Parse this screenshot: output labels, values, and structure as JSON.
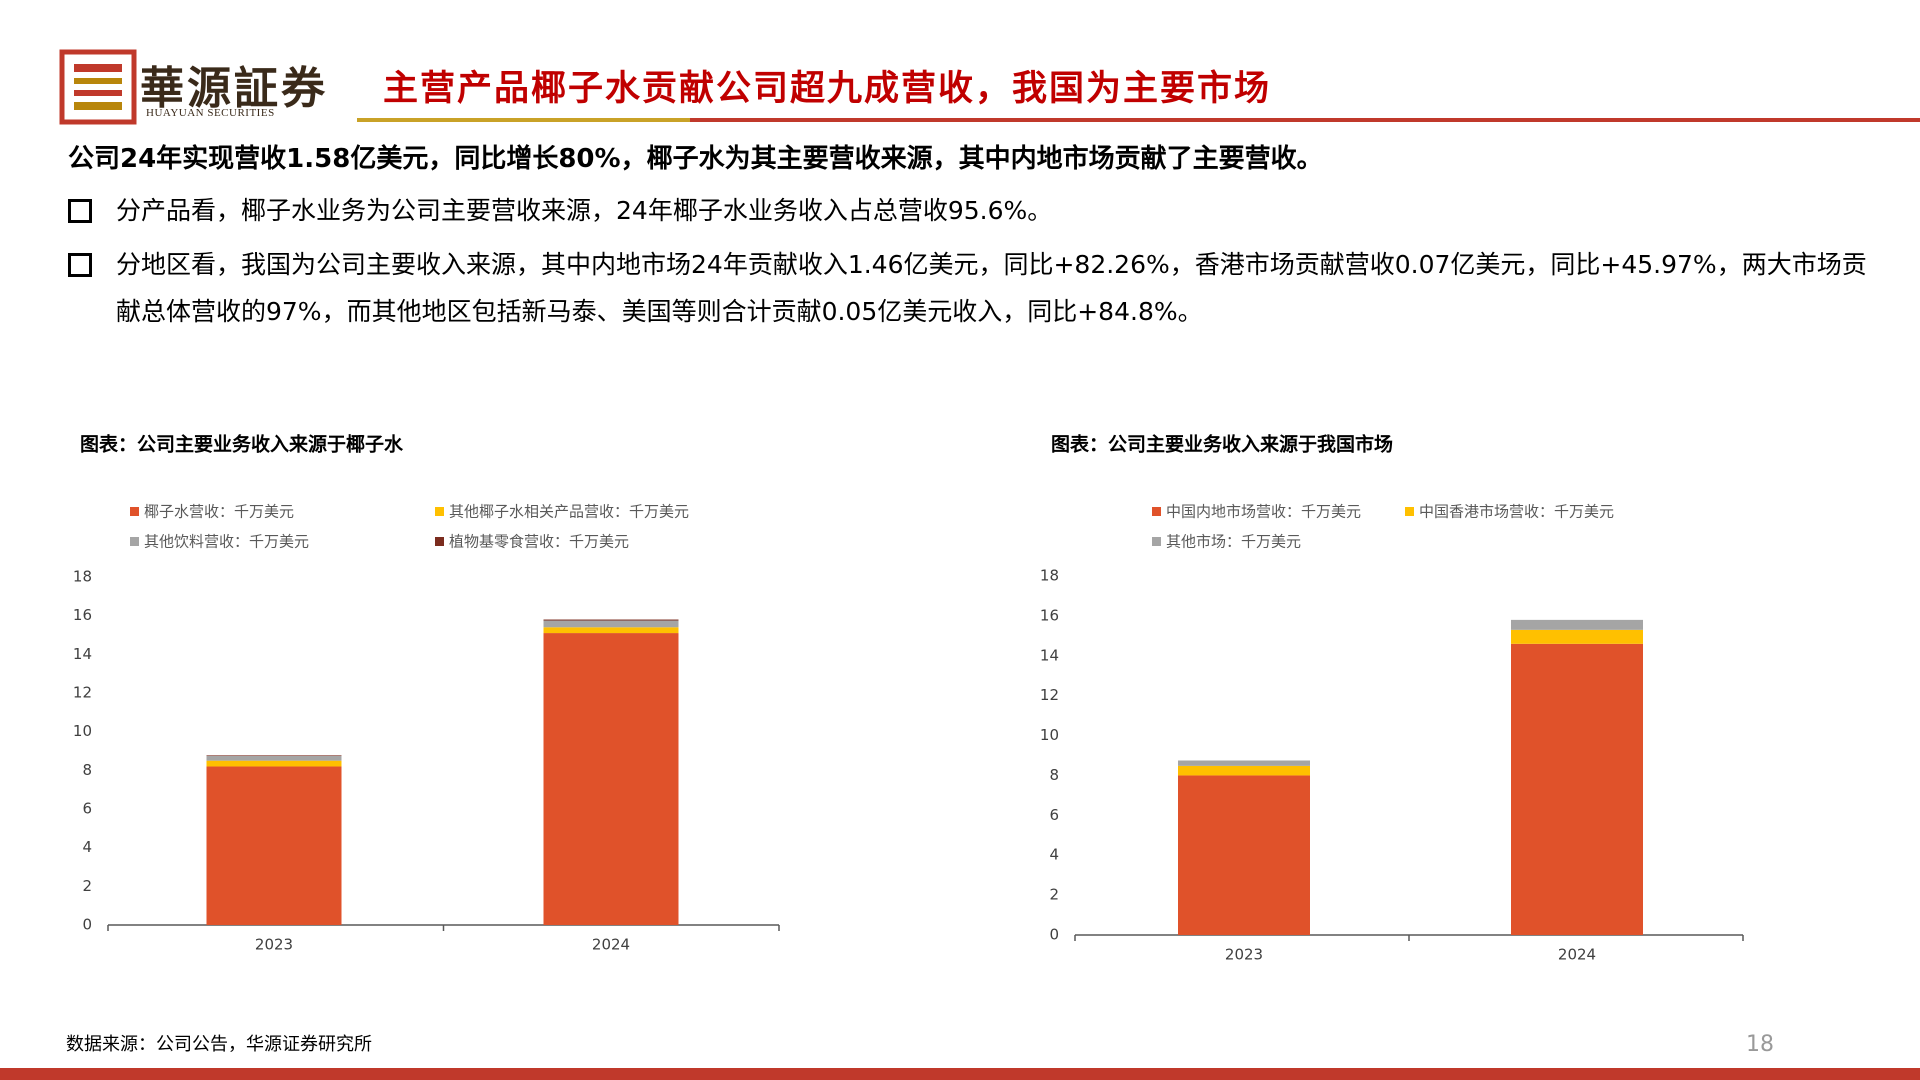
{
  "header": {
    "brand": "華源証券",
    "brand_en": "HUAYUAN SECURITIES",
    "title": "主营产品椰子水贡献公司超九成营收，我国为主要市场"
  },
  "summary": "公司24年实现营收1.58亿美元，同比增长80%，椰子水为其主要营收来源，其中内地市场贡献了主要营收。",
  "bullets": [
    "分产品看，椰子水业务为公司主要营收来源，24年椰子水业务收入占总营收95.6%。",
    "分地区看，我国为公司主要收入来源，其中内地市场24年贡献收入1.46亿美元，同比+82.26%，香港市场贡献营收0.07亿美元，同比+45.97%，两大市场贡献总体营收的97%，而其他地区包括新马泰、美国等则合计贡献0.05亿美元收入，同比+84.8%。"
  ],
  "chart_data": [
    {
      "type": "stacked_bar",
      "title": "图表：公司主要业务收入来源于椰子水",
      "categories": [
        "2023",
        "2024"
      ],
      "series": [
        {
          "name": "椰子水营收：千万美元",
          "color": "#e0522a",
          "values": [
            8.2,
            15.1
          ]
        },
        {
          "name": "其他椰子水相关产品营收：千万美元",
          "color": "#ffc000",
          "values": [
            0.3,
            0.3
          ]
        },
        {
          "name": "其他饮料营收：千万美元",
          "color": "#a5a5a5",
          "values": [
            0.25,
            0.35
          ]
        },
        {
          "name": "植物基零食营收：千万美元",
          "color": "#7b2c1e",
          "values": [
            0.03,
            0.05
          ]
        }
      ],
      "ylim": [
        0,
        18
      ],
      "yticks": [
        0,
        2,
        4,
        6,
        8,
        10,
        12,
        14,
        16,
        18
      ]
    },
    {
      "type": "stacked_bar",
      "title": "图表：公司主要业务收入来源于我国市场",
      "categories": [
        "2023",
        "2024"
      ],
      "series": [
        {
          "name": "中国内地市场营收：千万美元",
          "color": "#e0522a",
          "values": [
            8.0,
            14.6
          ]
        },
        {
          "name": "中国香港市场营收：千万美元",
          "color": "#ffc000",
          "values": [
            0.48,
            0.7
          ]
        },
        {
          "name": "其他市场：千万美元",
          "color": "#a5a5a5",
          "values": [
            0.27,
            0.5
          ]
        }
      ],
      "ylim": [
        0,
        18
      ],
      "yticks": [
        0,
        2,
        4,
        6,
        8,
        10,
        12,
        14,
        16,
        18
      ]
    }
  ],
  "source": "数据来源：公司公告，华源证券研究所",
  "page_number": "18"
}
